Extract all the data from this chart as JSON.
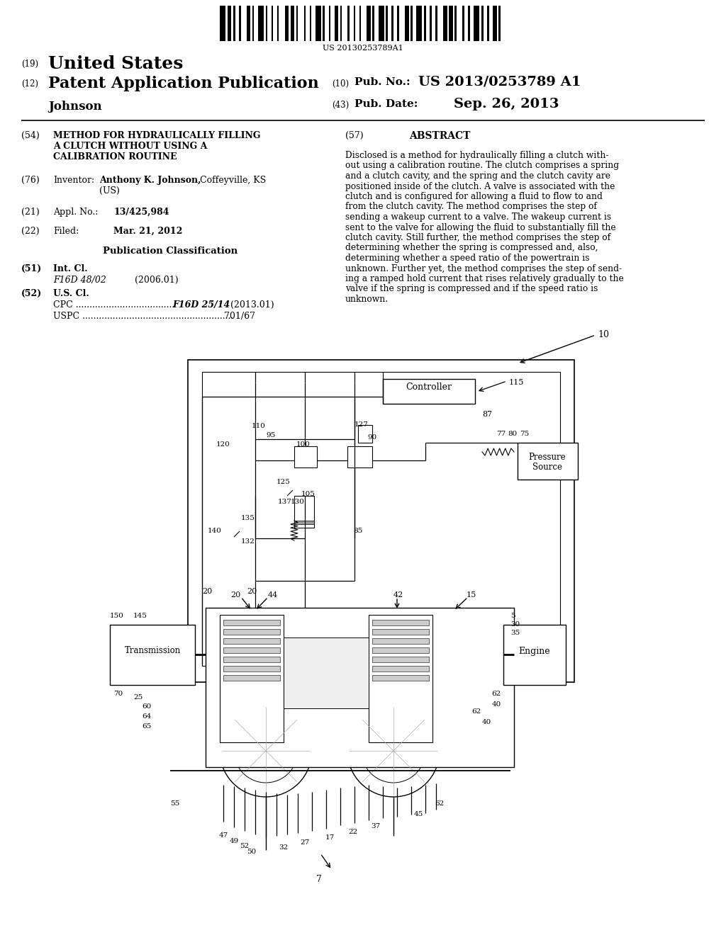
{
  "bg_color": "#ffffff",
  "barcode_text": "US 20130253789A1",
  "patent_number": "US 2013/0253789 A1",
  "pub_date": "Sep. 26, 2013",
  "country": "United States",
  "kind": "Patent Application Publication",
  "inventor_name": "Johnson",
  "abstract_text": "Disclosed is a method for hydraulically filling a clutch with-\nout using a calibration routine. The clutch comprises a spring\nand a clutch cavity, and the spring and the clutch cavity are\npositioned inside of the clutch. A valve is associated with the\nclutch and is configured for allowing a fluid to flow to and\nfrom the clutch cavity. The method comprises the step of\nsending a wakeup current to a valve. The wakeup current is\nsent to the valve for allowing the fluid to substantially fill the\nclutch cavity. Still further, the method comprises the step of\ndetermining whether the spring is compressed and, also,\ndetermining whether a speed ratio of the powertrain is\nunknown. Further yet, the method comprises the step of send-\ning a ramped hold current that rises relatively gradually to the\nvalve if the spring is compressed and if the speed ratio is\nunknown."
}
